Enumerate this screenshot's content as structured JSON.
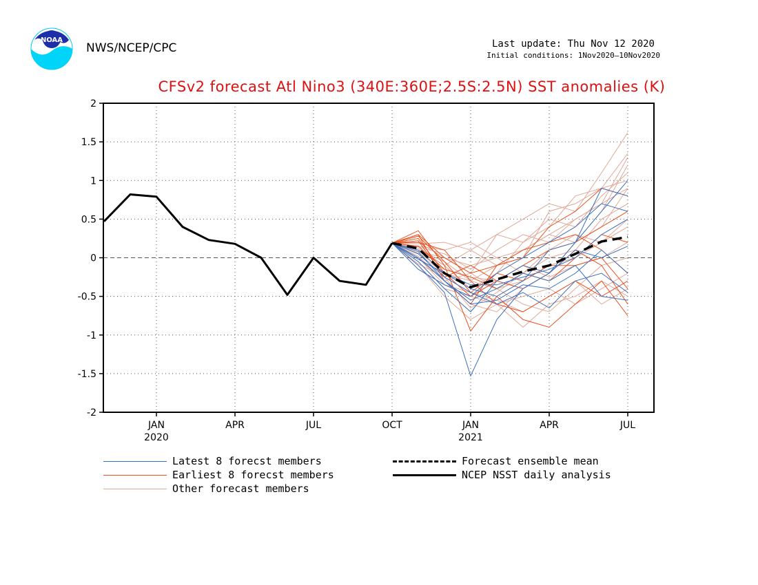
{
  "header": {
    "org": "NWS/NCEP/CPC",
    "last_update": "Last update: Thu Nov 12 2020",
    "initial_conditions": "Initial conditions: 1Nov2020–10Nov2020",
    "logo_text": "NOAA"
  },
  "colors": {
    "latest": "#3a6fbf",
    "earliest": "#e8501e",
    "other": "#e0a898",
    "mean": "#000000",
    "title": "#dd1111"
  },
  "chart_data": {
    "type": "line",
    "title": "CFSv2 forecast Atl Nino3 (340E:360E;2.5S:2.5N) SST anomalies (K)",
    "ylim": [
      -2,
      2
    ],
    "yticks": [
      -2,
      -1.5,
      -1,
      -0.5,
      0,
      0.5,
      1,
      1.5,
      2
    ],
    "xlim": [
      "2019-11",
      "2021-08"
    ],
    "xticks": [
      {
        "label": "JAN",
        "sublabel": "2020",
        "x": "2020-01"
      },
      {
        "label": "APR",
        "sublabel": "",
        "x": "2020-04"
      },
      {
        "label": "JUL",
        "sublabel": "",
        "x": "2020-07"
      },
      {
        "label": "OCT",
        "sublabel": "",
        "x": "2020-10"
      },
      {
        "label": "JAN",
        "sublabel": "2021",
        "x": "2021-01"
      },
      {
        "label": "APR",
        "sublabel": "",
        "x": "2021-04"
      },
      {
        "label": "JUL",
        "sublabel": "",
        "x": "2021-07"
      }
    ],
    "grid": true,
    "legend": {
      "latest": "Latest 8 forecst members",
      "earliest": "Earliest 8 forecst members",
      "other": "Other forecast members",
      "mean": "Forecast ensemble mean",
      "analysis": "NCEP NSST daily analysis"
    },
    "forecast_x": [
      "2020-10",
      "2020-11",
      "2020-12",
      "2021-01",
      "2021-02",
      "2021-03",
      "2021-04",
      "2021-05",
      "2021-06",
      "2021-07"
    ],
    "analysis": {
      "x": [
        "2019-11",
        "2019-12",
        "2020-01",
        "2020-02",
        "2020-03",
        "2020-04",
        "2020-05",
        "2020-06",
        "2020-07",
        "2020-08",
        "2020-09",
        "2020-10"
      ],
      "values": [
        0.47,
        0.82,
        0.79,
        0.4,
        0.23,
        0.18,
        0.0,
        -0.48,
        0.0,
        -0.3,
        -0.35,
        0.19
      ]
    },
    "ensemble_mean": [
      0.19,
      0.12,
      -0.2,
      -0.38,
      -0.28,
      -0.18,
      -0.1,
      0.05,
      0.21,
      0.27
    ],
    "series_latest": [
      [
        0.19,
        -0.1,
        -0.45,
        -1.53,
        -0.8,
        -0.4,
        -0.2,
        0.2,
        0.9,
        0.8
      ],
      [
        0.19,
        0.0,
        -0.3,
        -0.55,
        -0.4,
        -0.2,
        -0.3,
        -0.1,
        -0.5,
        -0.55
      ],
      [
        0.19,
        0.1,
        -0.2,
        -0.4,
        -0.5,
        -0.3,
        0.1,
        0.2,
        0.6,
        1.0
      ],
      [
        0.19,
        -0.05,
        -0.4,
        -0.7,
        -0.3,
        -0.1,
        -0.2,
        0.1,
        0.0,
        0.15
      ],
      [
        0.19,
        0.05,
        -0.25,
        -0.45,
        -0.6,
        -0.45,
        -0.65,
        -0.3,
        -0.2,
        -0.45
      ],
      [
        0.19,
        -0.15,
        -0.35,
        -0.5,
        -0.2,
        0.0,
        0.2,
        0.4,
        0.7,
        0.6
      ],
      [
        0.19,
        0.08,
        -0.3,
        -0.6,
        -0.55,
        -0.35,
        -0.4,
        -0.2,
        0.1,
        -0.2
      ],
      [
        0.19,
        -0.02,
        -0.2,
        -0.35,
        -0.35,
        -0.25,
        -0.15,
        0.0,
        0.3,
        0.5
      ]
    ],
    "series_earliest": [
      [
        0.19,
        0.35,
        -0.1,
        -0.95,
        -0.5,
        -0.8,
        -0.9,
        -0.6,
        -0.3,
        -0.75
      ],
      [
        0.19,
        0.3,
        0.0,
        -0.2,
        -0.1,
        0.0,
        0.4,
        0.6,
        0.9,
        0.8
      ],
      [
        0.19,
        0.25,
        -0.2,
        -0.5,
        -0.3,
        -0.4,
        -0.2,
        0.1,
        -0.1,
        -0.6
      ],
      [
        0.19,
        0.2,
        0.1,
        -0.3,
        -0.6,
        -0.7,
        -0.5,
        -0.3,
        -0.5,
        -0.3
      ],
      [
        0.19,
        0.3,
        -0.3,
        -0.6,
        -0.1,
        0.1,
        0.2,
        0.3,
        0.1,
        -0.2
      ],
      [
        0.19,
        0.15,
        -0.15,
        -0.25,
        -0.4,
        -0.2,
        -0.3,
        0.0,
        0.3,
        0.2
      ],
      [
        0.19,
        0.28,
        -0.05,
        -0.45,
        -0.2,
        -0.3,
        -0.1,
        -0.1,
        0.0,
        -0.4
      ],
      [
        0.19,
        0.22,
        -0.25,
        -0.1,
        -0.3,
        -0.1,
        0.1,
        0.2,
        0.4,
        0.6
      ]
    ],
    "series_other": [
      [
        0.19,
        0.2,
        0.0,
        -0.2,
        0.3,
        0.5,
        0.7,
        0.6,
        1.1,
        1.62
      ],
      [
        0.19,
        0.1,
        -0.1,
        -0.4,
        -0.2,
        0.2,
        0.4,
        0.8,
        0.9,
        1.35
      ],
      [
        0.19,
        0.0,
        -0.3,
        -0.6,
        -0.7,
        -0.4,
        -0.2,
        0.2,
        0.6,
        1.2
      ],
      [
        0.19,
        0.15,
        0.1,
        0.2,
        0.0,
        0.1,
        0.3,
        0.5,
        0.7,
        0.9
      ],
      [
        0.19,
        -0.05,
        -0.4,
        -0.5,
        -0.6,
        -0.9,
        -0.6,
        -0.5,
        -0.3,
        -0.5
      ],
      [
        0.19,
        0.05,
        -0.2,
        -0.3,
        -0.4,
        -0.3,
        -0.1,
        0.0,
        0.2,
        0.5
      ],
      [
        0.19,
        0.12,
        -0.1,
        0.1,
        0.3,
        0.2,
        0.5,
        0.4,
        0.8,
        1.1
      ],
      [
        0.19,
        -0.1,
        -0.5,
        -0.8,
        -0.6,
        -0.5,
        -0.4,
        -0.6,
        -0.4,
        -0.2
      ],
      [
        0.19,
        0.08,
        0.0,
        -0.1,
        0.0,
        -0.2,
        0.1,
        0.3,
        0.2,
        0.4
      ],
      [
        0.19,
        0.02,
        -0.3,
        -0.2,
        -0.4,
        -0.6,
        -0.7,
        -0.4,
        -0.1,
        0.0
      ],
      [
        0.19,
        0.18,
        0.2,
        0.1,
        -0.1,
        0.0,
        0.6,
        0.7,
        0.9,
        1.0
      ],
      [
        0.19,
        -0.08,
        -0.25,
        -0.65,
        -0.45,
        -0.2,
        0.0,
        0.1,
        0.5,
        0.7
      ],
      [
        0.19,
        0.1,
        -0.05,
        -0.3,
        -0.1,
        0.1,
        0.3,
        0.2,
        0.4,
        0.9
      ],
      [
        0.19,
        0.0,
        -0.35,
        -0.45,
        -0.55,
        -0.7,
        -0.5,
        -0.3,
        -0.6,
        -0.4
      ],
      [
        0.19,
        0.14,
        0.05,
        -0.15,
        0.1,
        0.3,
        0.2,
        0.5,
        0.7,
        1.3
      ],
      [
        0.19,
        0.06,
        -0.15,
        -0.25,
        -0.3,
        -0.1,
        -0.25,
        -0.1,
        0.0,
        0.2
      ]
    ]
  }
}
